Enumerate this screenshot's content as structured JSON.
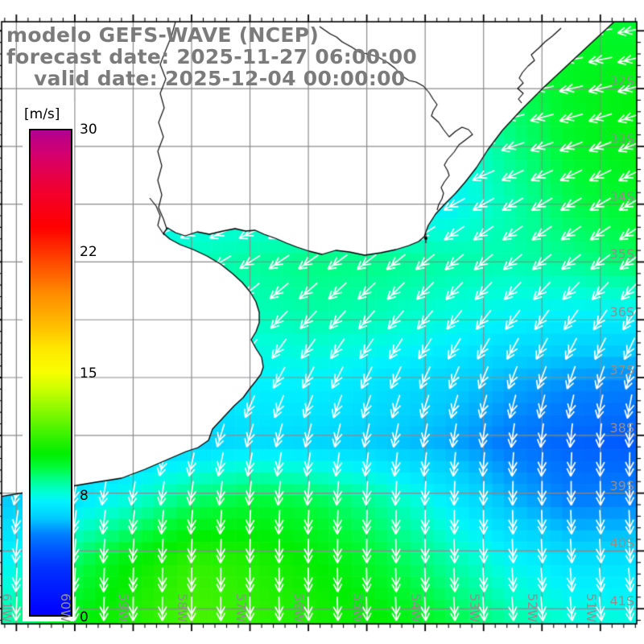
{
  "title": {
    "line1": "modelo GEFS-WAVE (NCEP)",
    "line2": "forecast date: 2025-11-27 06:00:00",
    "line3": "valid date: 2025-12-04 00:00:00"
  },
  "colorbar": {
    "unit": "[m/s]",
    "min": 0,
    "max": 30,
    "ticks": [
      {
        "label": "30",
        "value": 30
      },
      {
        "label": "22",
        "value": 22
      },
      {
        "label": "15",
        "value": 15
      },
      {
        "label": "8",
        "value": 8
      },
      {
        "label": "0",
        "value": 0
      }
    ],
    "stops": [
      [
        0,
        "#0000ff"
      ],
      [
        3,
        "#0033ff"
      ],
      [
        4,
        "#0055ff"
      ],
      [
        5,
        "#0080ff"
      ],
      [
        6,
        "#00ccff"
      ],
      [
        7,
        "#00f2ff"
      ],
      [
        7.6,
        "#00ffd5"
      ],
      [
        8.4,
        "#00ff88"
      ],
      [
        9.2,
        "#00fa33"
      ],
      [
        10,
        "#00ee00"
      ],
      [
        11,
        "#33f200"
      ],
      [
        12.5,
        "#80f800"
      ],
      [
        14,
        "#ccff00"
      ],
      [
        15,
        "#f8ff00"
      ],
      [
        16.5,
        "#ffe700"
      ],
      [
        18,
        "#ffbb00"
      ],
      [
        20,
        "#ff8800"
      ],
      [
        22,
        "#ff4400"
      ],
      [
        24,
        "#ff0000"
      ],
      [
        26.5,
        "#ef0033"
      ],
      [
        28.5,
        "#d4006e"
      ],
      [
        30,
        "#b2008e"
      ]
    ]
  },
  "axes": {
    "lat_labels": [
      "32S",
      "33S",
      "34S",
      "35S",
      "36S",
      "37S",
      "38S",
      "39S",
      "40S",
      "41S"
    ],
    "lat_values": [
      -32,
      -33,
      -34,
      -35,
      -36,
      -37,
      -38,
      -39,
      -40,
      -41
    ],
    "lon_labels": [
      "61W",
      "60W",
      "59W",
      "58W",
      "57W",
      "56W",
      "55W",
      "54W",
      "53W",
      "52W",
      "51W"
    ],
    "lon_values": [
      -61,
      -60,
      -59,
      -58,
      -57,
      -56,
      -55,
      -54,
      -53,
      -52,
      -51
    ]
  },
  "chart_data": {
    "type": "heatmap",
    "field": "wind speed [m/s] with wind-direction arrows (white), GEFS-WAVE model",
    "lon_range": [
      -61.253,
      -50.377
    ],
    "lat_range": [
      -41.262,
      -30.843
    ],
    "grid_note": "11x11 control grid, rows north-to-south, cols west-to-east, bilinear",
    "speeds": [
      [
        9.0,
        9.0,
        9.0,
        9.0,
        9.0,
        9.0,
        9.0,
        8.5,
        8.8,
        9.4,
        9.2
      ],
      [
        9.0,
        9.0,
        9.0,
        9.0,
        9.0,
        9.0,
        8.6,
        8.2,
        8.8,
        9.5,
        9.8
      ],
      [
        8.0,
        8.0,
        8.0,
        8.0,
        8.0,
        8.0,
        7.6,
        7.2,
        8.4,
        9.4,
        9.8
      ],
      [
        7.2,
        7.2,
        7.2,
        7.2,
        7.2,
        7.1,
        6.9,
        7.0,
        8.0,
        9.0,
        9.4
      ],
      [
        6.8,
        6.8,
        7.3,
        7.9,
        8.2,
        8.5,
        8.4,
        8.1,
        8.0,
        8.3,
        8.8
      ],
      [
        6.8,
        6.9,
        7.0,
        7.5,
        7.8,
        8.0,
        7.8,
        7.4,
        7.0,
        6.8,
        6.8
      ],
      [
        6.5,
        6.5,
        6.5,
        6.6,
        7.0,
        7.0,
        6.6,
        6.2,
        5.6,
        5.2,
        5.0
      ],
      [
        6.0,
        6.0,
        6.0,
        6.2,
        6.5,
        6.3,
        6.0,
        5.6,
        4.8,
        4.3,
        4.1
      ],
      [
        6.0,
        6.6,
        7.6,
        8.8,
        9.3,
        9.0,
        8.2,
        7.0,
        5.8,
        5.0,
        5.1
      ],
      [
        7.0,
        8.6,
        10.0,
        11.0,
        10.6,
        10.0,
        9.2,
        8.2,
        7.2,
        6.6,
        6.6
      ],
      [
        8.0,
        9.6,
        10.6,
        11.5,
        11.0,
        10.5,
        10.0,
        9.2,
        8.2,
        7.6,
        7.5
      ]
    ],
    "dirs_toward_deg": [
      [
        270,
        270,
        270,
        270,
        270,
        270,
        268,
        266,
        264,
        262,
        260
      ],
      [
        265,
        265,
        265,
        265,
        265,
        265,
        264,
        262,
        260,
        258,
        256
      ],
      [
        260,
        260,
        260,
        260,
        260,
        258,
        256,
        254,
        252,
        250,
        248
      ],
      [
        258,
        257,
        256,
        254,
        252,
        250,
        246,
        242,
        240,
        240,
        240
      ],
      [
        246,
        245,
        243,
        240,
        237,
        234,
        231,
        230,
        230,
        232,
        234
      ],
      [
        230,
        230,
        228,
        226,
        224,
        222,
        220,
        218,
        216,
        214,
        212
      ],
      [
        215,
        214,
        212,
        210,
        208,
        206,
        204,
        202,
        200,
        198,
        196
      ],
      [
        200,
        199,
        198,
        196,
        194,
        192,
        190,
        188,
        186,
        184,
        182
      ],
      [
        190,
        189,
        188,
        186,
        184,
        183,
        182,
        181,
        180,
        179,
        178
      ],
      [
        184,
        183,
        182,
        181,
        180,
        180,
        179,
        178,
        177,
        176,
        176
      ],
      [
        182,
        181,
        180,
        180,
        179,
        178,
        178,
        177,
        176,
        175,
        175
      ]
    ]
  },
  "geo": {
    "coastline": [
      [
        763,
        27
      ],
      [
        736,
        52
      ],
      [
        706,
        80
      ],
      [
        676,
        108
      ],
      [
        648,
        136
      ],
      [
        624,
        162
      ],
      [
        606,
        186
      ],
      [
        592,
        208
      ],
      [
        578,
        226
      ],
      [
        566,
        240
      ],
      [
        552,
        254
      ],
      [
        541,
        266
      ],
      [
        532,
        280
      ],
      [
        527,
        294
      ],
      [
        520,
        300
      ],
      [
        508,
        305
      ],
      [
        492,
        310
      ],
      [
        473,
        314
      ],
      [
        453,
        317
      ],
      [
        434,
        313
      ],
      [
        417,
        311
      ],
      [
        400,
        316
      ],
      [
        384,
        312
      ],
      [
        369,
        307
      ],
      [
        356,
        302
      ],
      [
        342,
        296
      ],
      [
        328,
        291
      ],
      [
        317,
        286
      ],
      [
        305,
        287
      ],
      [
        292,
        284
      ],
      [
        277,
        287
      ],
      [
        260,
        291
      ],
      [
        245,
        288
      ],
      [
        230,
        293
      ],
      [
        218,
        289
      ],
      [
        208,
        283
      ],
      [
        203,
        290
      ],
      [
        211,
        297
      ],
      [
        224,
        304
      ],
      [
        240,
        310
      ],
      [
        257,
        318
      ],
      [
        274,
        328
      ],
      [
        289,
        340
      ],
      [
        301,
        351
      ],
      [
        311,
        363
      ],
      [
        318,
        375
      ],
      [
        322,
        388
      ],
      [
        322,
        401
      ],
      [
        318,
        412
      ],
      [
        312,
        422
      ],
      [
        318,
        433
      ],
      [
        325,
        444
      ],
      [
        327,
        456
      ],
      [
        324,
        465
      ],
      [
        318,
        473
      ],
      [
        310,
        483
      ],
      [
        302,
        494
      ],
      [
        291,
        504
      ],
      [
        277,
        519
      ],
      [
        264,
        533
      ],
      [
        259,
        547
      ],
      [
        246,
        556
      ],
      [
        231,
        561
      ],
      [
        210,
        570
      ],
      [
        180,
        583
      ],
      [
        151,
        594
      ],
      [
        119,
        599
      ],
      [
        89,
        604
      ],
      [
        60,
        608
      ],
      [
        30,
        612
      ],
      [
        0,
        617
      ]
    ],
    "inner_shorelines": [
      [
        [
          397,
          33
        ],
        [
          410,
          42
        ],
        [
          418,
          46
        ],
        [
          425,
          52
        ],
        [
          436,
          58
        ],
        [
          447,
          65
        ],
        [
          461,
          68
        ],
        [
          470,
          71
        ],
        [
          482,
          78
        ],
        [
          491,
          85
        ],
        [
          499,
          94
        ],
        [
          508,
          100
        ],
        [
          517,
          102
        ],
        [
          526,
          107
        ],
        [
          533,
          115
        ],
        [
          538,
          123
        ],
        [
          543,
          130
        ],
        [
          538,
          138
        ],
        [
          536,
          144
        ],
        [
          545,
          152
        ],
        [
          551,
          161
        ],
        [
          558,
          170
        ],
        [
          566,
          163
        ],
        [
          574,
          158
        ],
        [
          582,
          161
        ],
        [
          587,
          167
        ],
        [
          578,
          174
        ],
        [
          570,
          180
        ],
        [
          564,
          189
        ],
        [
          556,
          198
        ],
        [
          552,
          205
        ],
        [
          556,
          212
        ],
        [
          558,
          218
        ],
        [
          552,
          226
        ],
        [
          548,
          233
        ],
        [
          551,
          240
        ],
        [
          549,
          247
        ],
        [
          545,
          254
        ],
        [
          543,
          261
        ]
      ],
      [
        [
          697,
          35
        ],
        [
          686,
          45
        ],
        [
          677,
          52
        ],
        [
          669,
          60
        ],
        [
          660,
          68
        ],
        [
          664,
          75
        ],
        [
          656,
          82
        ],
        [
          649,
          90
        ],
        [
          645,
          97
        ],
        [
          650,
          103
        ],
        [
          643,
          110
        ],
        [
          650,
          116
        ],
        [
          644,
          123
        ],
        [
          648,
          128
        ]
      ]
    ],
    "rivers": [
      [
        [
          218,
          27
        ],
        [
          213,
          45
        ],
        [
          206,
          62
        ],
        [
          199,
          80
        ],
        [
          206,
          98
        ],
        [
          199,
          116
        ],
        [
          204,
          134
        ],
        [
          197,
          152
        ],
        [
          203,
          170
        ],
        [
          196,
          188
        ],
        [
          201,
          206
        ],
        [
          196,
          224
        ],
        [
          201,
          242
        ],
        [
          197,
          258
        ],
        [
          203,
          272
        ],
        [
          207,
          284
        ]
      ],
      [
        [
          186,
          246
        ],
        [
          194,
          256
        ],
        [
          199,
          268
        ],
        [
          196,
          280
        ],
        [
          204,
          292
        ]
      ]
    ],
    "island": [
      529,
      296
    ]
  },
  "map_colors": {
    "grid": "#8a8a8a",
    "coast": "#000000",
    "land": "#ffffff",
    "arrow": "#ffffff",
    "axis_label": "#8f8f8f",
    "title": "#7b7b7b",
    "frame": "#000000"
  }
}
